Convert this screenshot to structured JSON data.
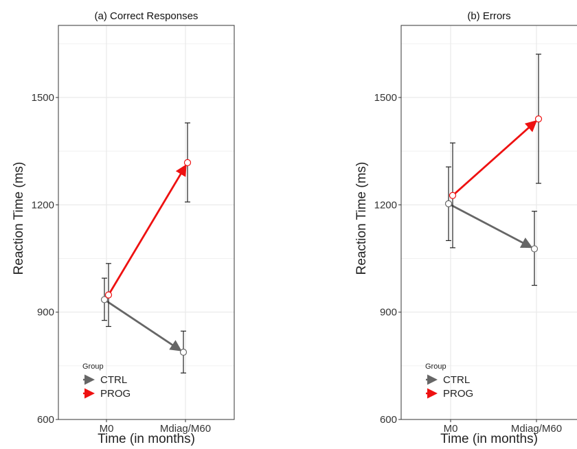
{
  "chart_data": [
    {
      "type": "line",
      "title": "(a) Correct Responses",
      "xlabel": "Time (in months)",
      "ylabel": "Reaction Time (ms)",
      "categories": [
        "M0",
        "Mdiag/M60"
      ],
      "yticks": [
        600,
        900,
        1200,
        1500
      ],
      "ylim": [
        600,
        1700
      ],
      "grid": true,
      "legend": {
        "title": "Group",
        "position": "bottom-left"
      },
      "series": [
        {
          "name": "CTRL",
          "color": "#666666",
          "values": [
            935,
            788
          ],
          "error_low": [
            877,
            730
          ],
          "error_high": [
            995,
            847
          ]
        },
        {
          "name": "PROG",
          "color": "#ee1111",
          "values": [
            948,
            1318
          ],
          "error_low": [
            860,
            1208
          ],
          "error_high": [
            1036,
            1429
          ]
        }
      ]
    },
    {
      "type": "line",
      "title": "(b) Errors",
      "xlabel": "Time (in months)",
      "ylabel": "Reaction Time (ms)",
      "categories": [
        "M0",
        "Mdiag/M60"
      ],
      "yticks": [
        600,
        900,
        1200,
        1500
      ],
      "ylim": [
        600,
        1700
      ],
      "grid": true,
      "legend": {
        "title": "Group",
        "position": "bottom-left"
      },
      "series": [
        {
          "name": "CTRL",
          "color": "#666666",
          "values": [
            1203,
            1077
          ],
          "error_low": [
            1100,
            975
          ],
          "error_high": [
            1306,
            1182
          ]
        },
        {
          "name": "PROG",
          "color": "#ee1111",
          "values": [
            1226,
            1440
          ],
          "error_low": [
            1080,
            1260
          ],
          "error_high": [
            1373,
            1621
          ]
        }
      ]
    }
  ]
}
